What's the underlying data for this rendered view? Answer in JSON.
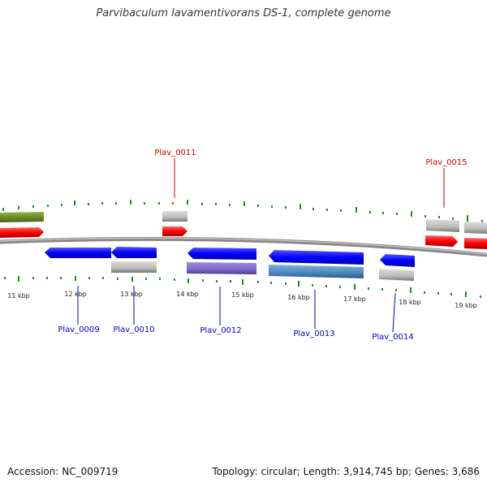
{
  "header": {
    "title": "Parvibaculum lavamentivorans DS-1, complete genome"
  },
  "footer": {
    "accession": "Accession: NC_009719",
    "topology": "Topology: circular; Length: 3,914,745 bp; Genes: 3,686"
  },
  "scale": {
    "ticks": [
      "11 kbp",
      "12 kbp",
      "13 kbp",
      "14 kbp",
      "15 kbp",
      "16 kbp",
      "17 kbp",
      "18 kbp",
      "19 kbp"
    ]
  },
  "genes": {
    "top_labels": [
      "Plav_0011",
      "Plav_0015"
    ],
    "bottom_labels": [
      "Plav_0009",
      "Plav_0010",
      "Plav_0012",
      "Plav_0013",
      "Plav_0014"
    ]
  },
  "colors": {
    "forward_cds": "#ff0000",
    "reverse_cds": "#0000ff",
    "gene_gray": "#bbbbbb",
    "green_feature": "#6b8e23",
    "purple_feature": "#7b68c8",
    "steelblue_feature": "#4a86b8",
    "tick_green": "#228b22",
    "backbone": "#888888"
  }
}
